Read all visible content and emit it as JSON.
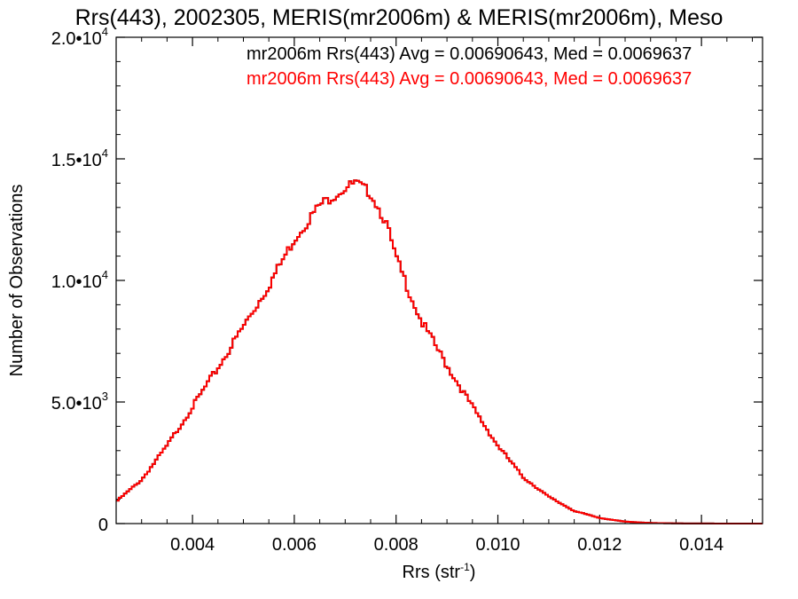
{
  "chart_data": {
    "type": "bar",
    "title": "Rrs(443), 2002305, MERIS(mr2006m) & MERIS(mr2006m), Meso",
    "xlabel": "Rrs (str",
    "xlabel_sup": "-1",
    "xlabel_close": ")",
    "ylabel": "Number of Observations",
    "xlim": [
      0.0025,
      0.0152
    ],
    "ylim": [
      0,
      20000
    ],
    "x_ticks": [
      {
        "value": 0.004,
        "label": "0.004"
      },
      {
        "value": 0.006,
        "label": "0.006"
      },
      {
        "value": 0.008,
        "label": "0.008"
      },
      {
        "value": 0.01,
        "label": "0.010"
      },
      {
        "value": 0.012,
        "label": "0.012"
      },
      {
        "value": 0.014,
        "label": "0.014"
      }
    ],
    "y_ticks": [
      {
        "value": 0,
        "mantissa": "0",
        "exp": ""
      },
      {
        "value": 5000,
        "mantissa": "5.0•10",
        "exp": "3"
      },
      {
        "value": 10000,
        "mantissa": "1.0•10",
        "exp": "4"
      },
      {
        "value": 15000,
        "mantissa": "1.5•10",
        "exp": "4"
      },
      {
        "value": 20000,
        "mantissa": "2.0•10",
        "exp": "4"
      }
    ],
    "legend": [
      {
        "text": "mr2006m Rrs(443) Avg = 0.00690643, Med = 0.0069637",
        "color": "#000000"
      },
      {
        "text": "mr2006m Rrs(443) Avg = 0.00690643, Med = 0.0069637",
        "color": "#ff0000"
      }
    ],
    "legend_position": "top-right",
    "series_colors": [
      "#000000",
      "#ff0000"
    ],
    "curve_points": [
      [
        0.0025,
        900
      ],
      [
        0.003,
        1800
      ],
      [
        0.0035,
        3200
      ],
      [
        0.004,
        4800
      ],
      [
        0.0045,
        6400
      ],
      [
        0.005,
        8100
      ],
      [
        0.0055,
        9800
      ],
      [
        0.006,
        11700
      ],
      [
        0.0065,
        13100
      ],
      [
        0.007,
        13800
      ],
      [
        0.0072,
        14000
      ],
      [
        0.0075,
        13600
      ],
      [
        0.0078,
        12400
      ],
      [
        0.008,
        10900
      ],
      [
        0.0085,
        8300
      ],
      [
        0.009,
        6500
      ],
      [
        0.0095,
        4800
      ],
      [
        0.01,
        3200
      ],
      [
        0.0105,
        1900
      ],
      [
        0.011,
        1100
      ],
      [
        0.0115,
        520
      ],
      [
        0.012,
        230
      ],
      [
        0.0125,
        80
      ],
      [
        0.013,
        25
      ],
      [
        0.0135,
        8
      ],
      [
        0.014,
        3
      ],
      [
        0.0152,
        0
      ]
    ]
  }
}
